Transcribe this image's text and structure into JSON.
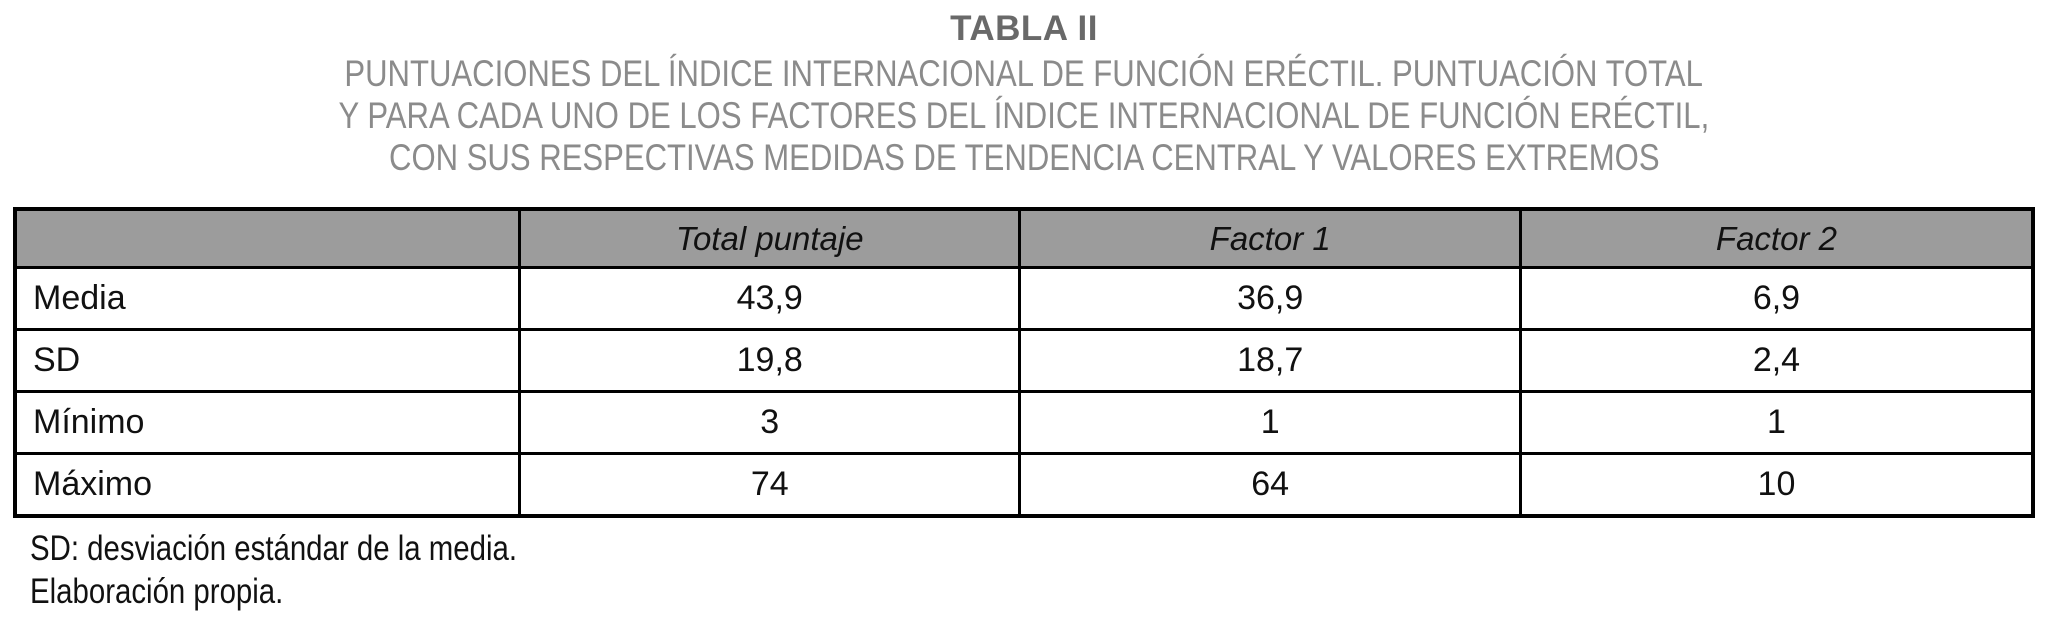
{
  "title": "TABLA II",
  "subtitle_lines": [
    "PUNTUACIONES DEL ÍNDICE INTERNACIONAL DE FUNCIÓN ERÉCTIL. PUNTUACIÓN TOTAL",
    "Y PARA CADA UNO DE LOS FACTORES DEL ÍNDICE INTERNACIONAL DE FUNCIÓN ERÉCTIL,",
    "CON SUS RESPECTIVAS MEDIDAS DE TENDENCIA CENTRAL Y VALORES EXTREMOS"
  ],
  "table": {
    "columns": [
      "",
      "Total puntaje",
      "Factor 1",
      "Factor 2"
    ],
    "rows": [
      {
        "label": "Media",
        "values": [
          "43,9",
          "36,9",
          "6,9"
        ]
      },
      {
        "label": "SD",
        "values": [
          "19,8",
          "18,7",
          "2,4"
        ]
      },
      {
        "label": "Mínimo",
        "values": [
          "3",
          "1",
          "1"
        ]
      },
      {
        "label": "Máximo",
        "values": [
          "74",
          "64",
          "10"
        ]
      }
    ]
  },
  "footnotes": [
    "SD: desviación estándar de la media.",
    "Elaboración propia."
  ],
  "colors": {
    "title_text": "#696969",
    "subtitle_text": "#8b8b8b",
    "header_background": "#9c9c9c",
    "table_border": "#000000",
    "cell_text": "#111111",
    "page_background": "#ffffff"
  }
}
